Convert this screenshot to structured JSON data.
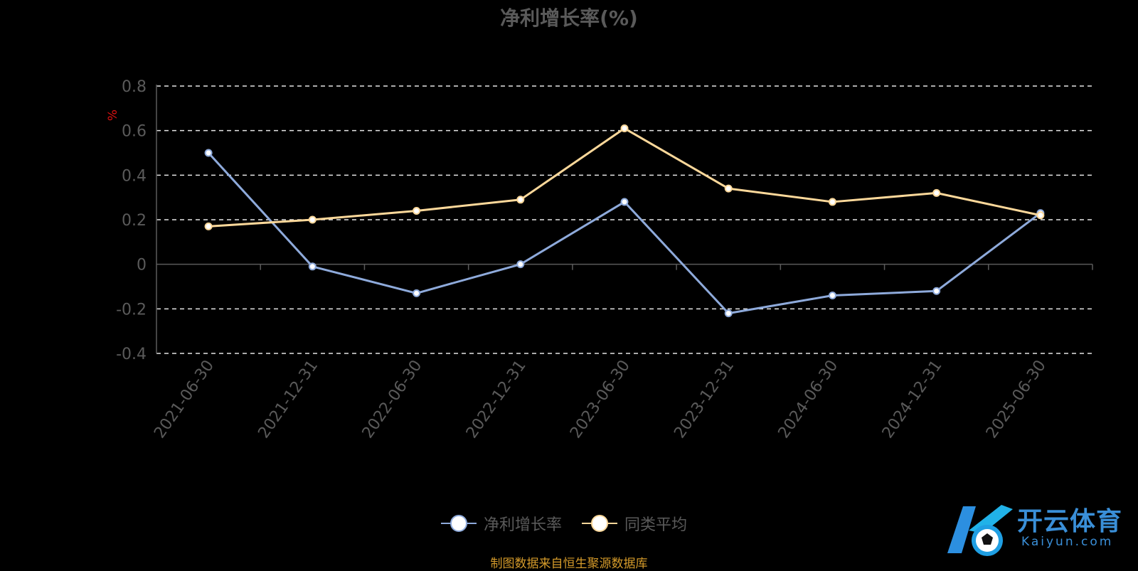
{
  "chart_data": {
    "type": "line",
    "title": "净利增长率(%)",
    "ylabel": "%",
    "xlabel": "",
    "ylim": [
      -0.4,
      0.8
    ],
    "yticks": [
      "0.8",
      "0.6",
      "0.4",
      "0.2",
      "0",
      "-0.2",
      "-0.4"
    ],
    "categories": [
      "2021-06-30",
      "2021-12-31",
      "2022-06-30",
      "2022-12-31",
      "2023-06-30",
      "2023-12-31",
      "2024-06-30",
      "2024-12-31",
      "2025-06-30"
    ],
    "series": [
      {
        "name": "净利增长率",
        "color": "#8eaadb",
        "values": [
          0.5,
          -0.01,
          -0.13,
          0.0,
          0.28,
          -0.22,
          -0.14,
          -0.12,
          0.23
        ]
      },
      {
        "name": "同类平均",
        "color": "#fcd89a",
        "values": [
          0.17,
          0.2,
          0.24,
          0.29,
          0.61,
          0.34,
          0.28,
          0.32,
          0.22
        ]
      }
    ],
    "grid": true,
    "legend_position": "bottom-center"
  },
  "source_note": "制图数据来自恒生聚源数据库",
  "watermark": {
    "text": "开云体育",
    "sub": "Kaiyun.com"
  }
}
